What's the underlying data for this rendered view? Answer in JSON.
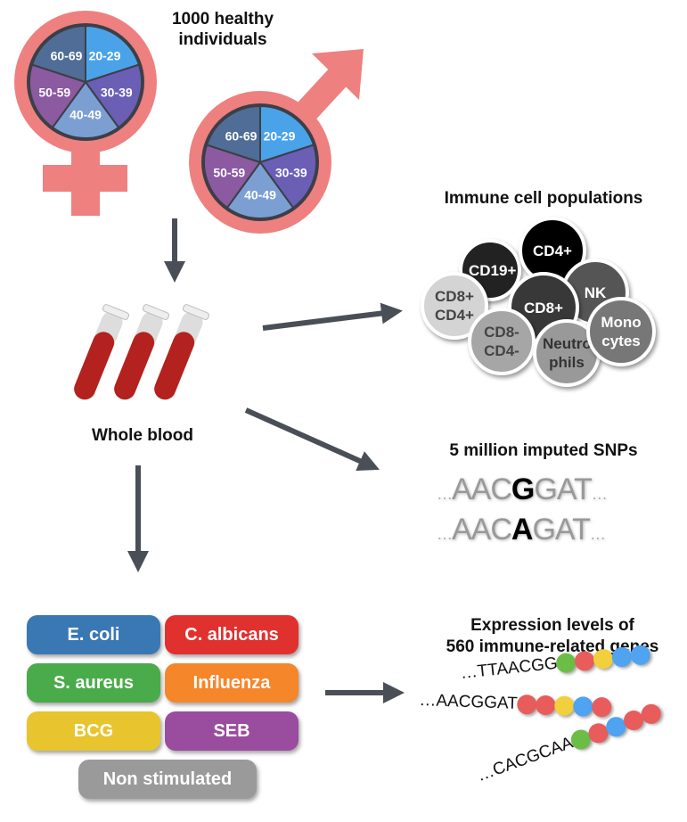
{
  "cohort": {
    "title": "1000 healthy individuals",
    "age_groups": [
      "20-29",
      "30-39",
      "40-49",
      "50-59",
      "60-69"
    ],
    "age_colors": [
      "#4aa3e8",
      "#6a5fb5",
      "#7b9fd3",
      "#8b5aa0",
      "#4f6d96"
    ],
    "symbol_color": "#ee8080"
  },
  "blood": {
    "label": "Whole blood",
    "tube_color": "#b3221e"
  },
  "immune": {
    "title": "Immune cell populations",
    "cells": [
      {
        "label": "CD19+",
        "bg": "#222",
        "fg": "#fff"
      },
      {
        "label": "CD4+",
        "bg": "#000",
        "fg": "#fff"
      },
      {
        "label": "NK",
        "bg": "#555",
        "fg": "#fff"
      },
      {
        "label": "CD8+ CD4+",
        "bg": "#d4d4d4",
        "fg": "#444"
      },
      {
        "label": "CD8+",
        "bg": "#383838",
        "fg": "#fff"
      },
      {
        "label": "CD8- CD4-",
        "bg": "#a6a6a6",
        "fg": "#444"
      },
      {
        "label": "Neutro phils",
        "bg": "#999",
        "fg": "#333"
      },
      {
        "label": "Mono cytes",
        "bg": "#777",
        "fg": "#fff"
      }
    ]
  },
  "snps": {
    "title": "5 million imputed SNPs",
    "rows": [
      {
        "pre": "AAC",
        "alt": "G",
        "post": "GAT"
      },
      {
        "pre": "AAC",
        "alt": "A",
        "post": "GAT"
      }
    ],
    "ellipsis": "…"
  },
  "expression": {
    "title_line1": "Expression levels of",
    "title_line2": "560 immune-related genes",
    "rows": [
      {
        "seq": "…TTAACGG",
        "dots": [
          "#6cbd45",
          "#e85c5c",
          "#f2cf3c",
          "#4fa3f0",
          "#4fa3f0"
        ]
      },
      {
        "seq": "…AACGGAT",
        "dots": [
          "#e85c5c",
          "#e85c5c",
          "#f2cf3c",
          "#4fa3f0",
          "#e85c5c"
        ]
      },
      {
        "seq": "…CACGCAA",
        "dots": [
          "#6cbd45",
          "#e85c5c",
          "#4fa3f0",
          "#e85c5c",
          "#e85c5c"
        ]
      }
    ]
  },
  "stimuli": [
    {
      "label": "E. coli",
      "color": "#3a78b4"
    },
    {
      "label": "C. albicans",
      "color": "#e0312f"
    },
    {
      "label": "S. aureus",
      "color": "#4aab4a"
    },
    {
      "label": "Influenza",
      "color": "#f5862a"
    },
    {
      "label": "BCG",
      "color": "#e8c42e"
    },
    {
      "label": "SEB",
      "color": "#9a4c9f"
    },
    {
      "label": "Non stimulated",
      "color": "#9a9a9a"
    }
  ],
  "arrow_color": "#4a4f57"
}
